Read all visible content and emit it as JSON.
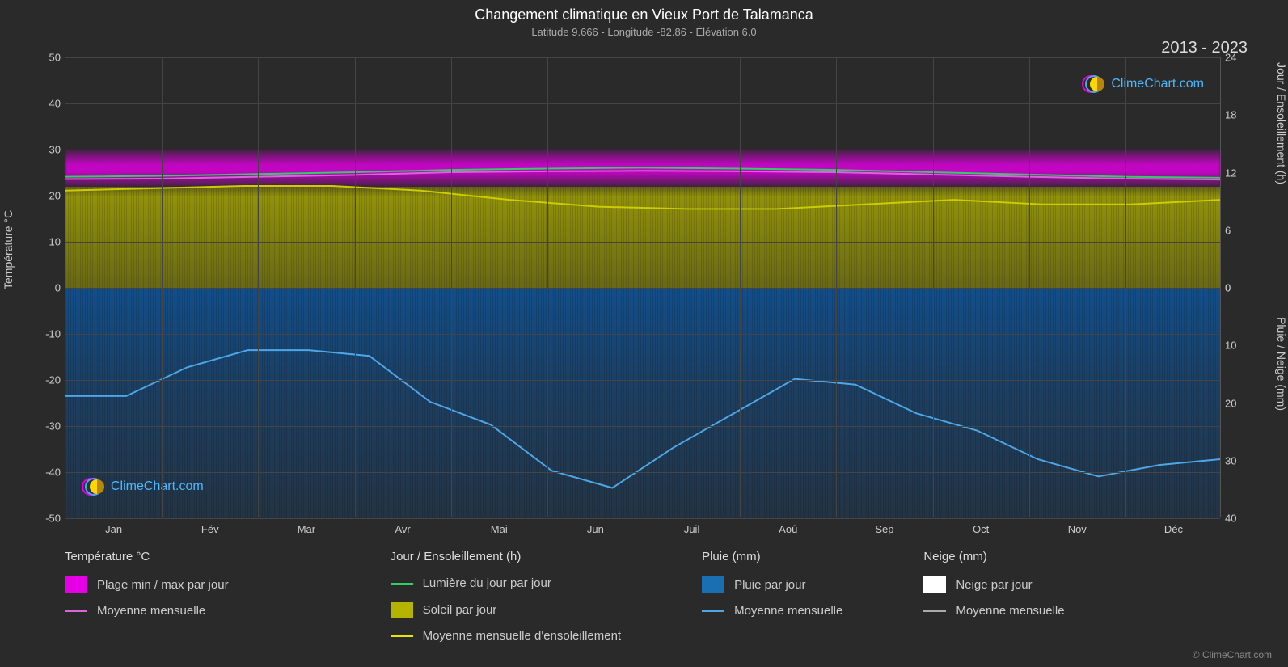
{
  "title": "Changement climatique en Vieux Port de Talamanca",
  "subtitle": "Latitude 9.666 - Longitude -82.86 - Élévation 6.0",
  "year_range": "2013 - 2023",
  "axis_labels": {
    "left": "Température °C",
    "right_top": "Jour / Ensoleillement (h)",
    "right_bottom": "Pluie / Neige (mm)"
  },
  "y_left": {
    "min": -50,
    "max": 50,
    "ticks": [
      -50,
      -40,
      -30,
      -20,
      -10,
      0,
      10,
      20,
      30,
      40,
      50
    ]
  },
  "y_right_top": {
    "min": 0,
    "max": 24,
    "ticks": [
      0,
      6,
      12,
      18,
      24
    ]
  },
  "y_right_bottom": {
    "min": 0,
    "max": 40,
    "ticks": [
      0,
      10,
      20,
      30,
      40
    ]
  },
  "months": [
    "Jan",
    "Fév",
    "Mar",
    "Avr",
    "Mai",
    "Jun",
    "Juil",
    "Aoû",
    "Sep",
    "Oct",
    "Nov",
    "Déc"
  ],
  "colors": {
    "bg": "#2a2a2a",
    "grid": "#444444",
    "magenta": "#e600e6",
    "magenta_line": "#d966d9",
    "green": "#33cc66",
    "yellow": "#cccc00",
    "olive": "#b3b300",
    "blue_fill": "#1a6fb3",
    "blue_line": "#4da6e6",
    "white": "#ffffff",
    "gray_line": "#aaaaaa",
    "text": "#cccccc",
    "logo_text": "#4db8ff"
  },
  "temp_band": {
    "low": 22,
    "high": 30
  },
  "sun_band": {
    "low": 0,
    "high": 22
  },
  "rain_band": {
    "low": 0,
    "high": 40
  },
  "series": {
    "green_daylight": [
      24,
      24.2,
      24.6,
      25,
      25.5,
      25.8,
      26,
      25.8,
      25.5,
      25,
      24.5,
      24,
      23.8
    ],
    "magenta_avg": [
      23.5,
      23.6,
      24,
      24.4,
      25,
      25.2,
      25.3,
      25.2,
      25,
      24.5,
      24,
      23.6,
      23.4
    ],
    "yellow_sun": [
      21,
      21.5,
      22,
      22,
      21,
      19,
      17.5,
      17,
      17,
      18,
      19,
      18,
      18,
      19
    ],
    "blue_rain": [
      19,
      19,
      14,
      11,
      11,
      12,
      20,
      24,
      32,
      35,
      28,
      22,
      16,
      17,
      22,
      25,
      30,
      33,
      31,
      30
    ]
  },
  "legend": {
    "temp": {
      "header": "Température °C",
      "items": [
        {
          "swatch_type": "box",
          "color": "#e600e6",
          "label": "Plage min / max par jour"
        },
        {
          "swatch_type": "line",
          "color": "#d966d9",
          "label": "Moyenne mensuelle"
        }
      ]
    },
    "sun": {
      "header": "Jour / Ensoleillement (h)",
      "items": [
        {
          "swatch_type": "line",
          "color": "#33cc66",
          "label": "Lumière du jour par jour"
        },
        {
          "swatch_type": "box",
          "color": "#b3b300",
          "label": "Soleil par jour"
        },
        {
          "swatch_type": "line",
          "color": "#e6e600",
          "label": "Moyenne mensuelle d'ensoleillement"
        }
      ]
    },
    "rain": {
      "header": "Pluie (mm)",
      "items": [
        {
          "swatch_type": "box",
          "color": "#1a6fb3",
          "label": "Pluie par jour"
        },
        {
          "swatch_type": "line",
          "color": "#4da6e6",
          "label": "Moyenne mensuelle"
        }
      ]
    },
    "snow": {
      "header": "Neige (mm)",
      "items": [
        {
          "swatch_type": "box",
          "color": "#ffffff",
          "label": "Neige par jour"
        },
        {
          "swatch_type": "line",
          "color": "#aaaaaa",
          "label": "Moyenne mensuelle"
        }
      ]
    }
  },
  "logo_text": "ClimeChart.com",
  "copyright": "© ClimeChart.com"
}
